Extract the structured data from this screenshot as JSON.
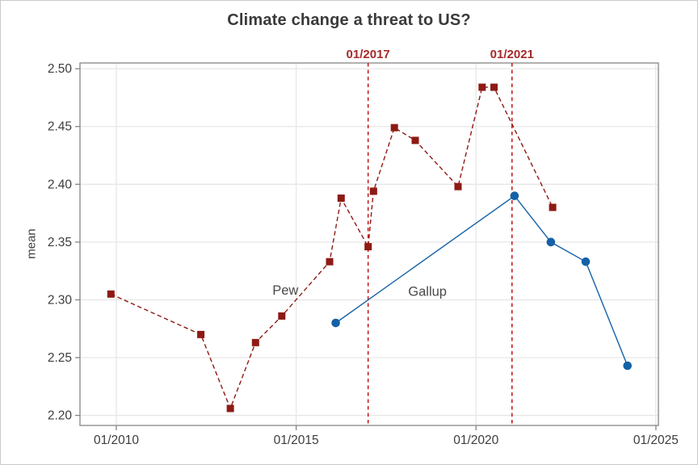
{
  "title": "Climate change a threat to US?",
  "chart_data": {
    "type": "line",
    "title": "Climate change a threat to US?",
    "xlabel": "",
    "ylabel": "mean",
    "xlim": [
      2008.99,
      2025.07
    ],
    "ylim": [
      2.192,
      2.505
    ],
    "grid": true,
    "legend_position": "none",
    "x_ticks": [
      {
        "value": 2010,
        "label": "01/2010"
      },
      {
        "value": 2015,
        "label": "01/2015"
      },
      {
        "value": 2020,
        "label": "01/2020"
      },
      {
        "value": 2025,
        "label": "01/2025"
      }
    ],
    "y_ticks": [
      {
        "value": 2.2,
        "label": "2.20"
      },
      {
        "value": 2.25,
        "label": "2.25"
      },
      {
        "value": 2.3,
        "label": "2.30"
      },
      {
        "value": 2.35,
        "label": "2.35"
      },
      {
        "value": 2.4,
        "label": "2.40"
      },
      {
        "value": 2.45,
        "label": "2.45"
      },
      {
        "value": 2.5,
        "label": "2.50"
      }
    ],
    "series": [
      {
        "name": "Pew",
        "color": "#8e1a14",
        "line_style": "dashed",
        "marker": "square",
        "points": [
          [
            2009.85,
            2.305
          ],
          [
            2012.35,
            2.27
          ],
          [
            2013.17,
            2.206
          ],
          [
            2013.87,
            2.263
          ],
          [
            2014.6,
            2.286
          ],
          [
            2015.93,
            2.333
          ],
          [
            2016.25,
            2.388
          ],
          [
            2017.0,
            2.346
          ],
          [
            2017.15,
            2.394
          ],
          [
            2017.73,
            2.449
          ],
          [
            2018.31,
            2.438
          ],
          [
            2019.5,
            2.398
          ],
          [
            2020.17,
            2.484
          ],
          [
            2020.5,
            2.484
          ],
          [
            2022.13,
            2.38
          ]
        ]
      },
      {
        "name": "Gallup",
        "color": "#1561a8",
        "line_style": "solid",
        "marker": "circle",
        "points": [
          [
            2016.1,
            2.28
          ],
          [
            2021.07,
            2.39
          ],
          [
            2022.08,
            2.35
          ],
          [
            2023.05,
            2.333
          ],
          [
            2024.21,
            2.243
          ]
        ]
      }
    ],
    "reference_lines": [
      {
        "x": 2017.0,
        "label": "01/2017"
      },
      {
        "x": 2021.0,
        "label": "01/2021"
      }
    ],
    "annotations": [
      {
        "text": "Pew",
        "x": 2014.7,
        "y": 2.308
      },
      {
        "text": "Gallup",
        "x": 2018.65,
        "y": 2.307
      }
    ]
  },
  "colors": {
    "pew": "#8e1a14",
    "gallup": "#1561a8",
    "reference_line": "#c41414",
    "reference_label": "#a62a2a",
    "grid": "#e7e7e7",
    "plot_border": "#858585",
    "tick_label": "#3d3d3d",
    "annotation_text": "#4a4a4a",
    "title_text": "#3a3a3a",
    "background": "#ffffff"
  }
}
